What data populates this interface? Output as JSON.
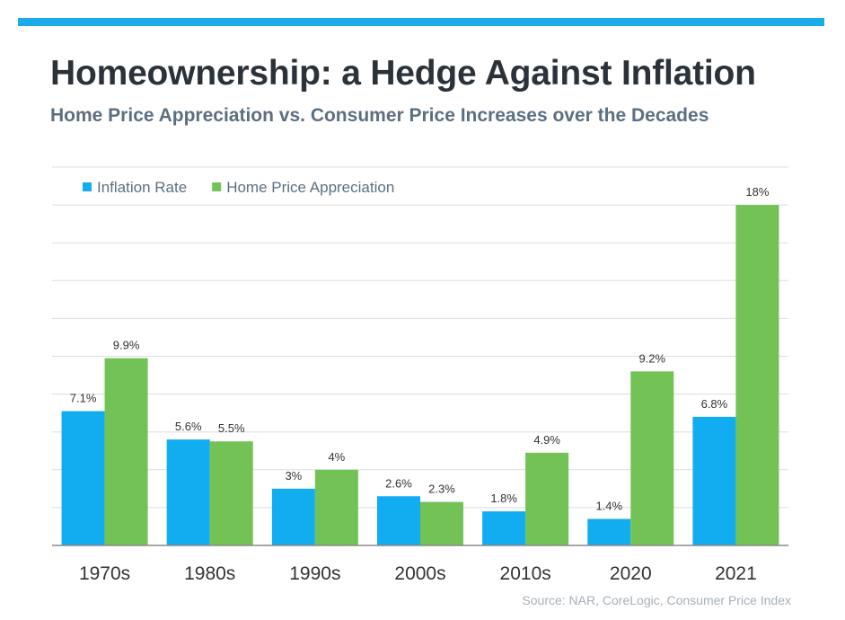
{
  "header": {
    "title": "Homeownership: a Hedge Against Inflation",
    "subtitle": "Home Price Appreciation vs. Consumer Price Increases over the Decades"
  },
  "footer": {
    "source": "Source: NAR, CoreLogic, Consumer Price Index"
  },
  "colors": {
    "accent_bar": "#1aabeb",
    "inflation": "#12acf0",
    "home_price": "#72c256",
    "gridline": "#dddddd",
    "axis": "#8a8a8a",
    "label_text": "#333333",
    "tick_text": "#333333"
  },
  "chart_data": {
    "type": "bar",
    "categories": [
      "1970s",
      "1980s",
      "1990s",
      "2000s",
      "2010s",
      "2020",
      "2021"
    ],
    "series": [
      {
        "name": "Inflation Rate",
        "values": [
          7.1,
          5.6,
          3,
          2.6,
          1.8,
          1.4,
          6.8
        ],
        "labels": [
          "7.1%",
          "5.6%",
          "3%",
          "2.6%",
          "1.8%",
          "1.4%",
          "6.8%"
        ]
      },
      {
        "name": "Home Price Appreciation",
        "values": [
          9.9,
          5.5,
          4,
          2.3,
          4.9,
          9.2,
          18
        ],
        "labels": [
          "9.9%",
          "5.5%",
          "4%",
          "2.3%",
          "4.9%",
          "9.2%",
          "18%"
        ]
      }
    ],
    "ylim": [
      0,
      20
    ],
    "grid": true,
    "legend_position": "top-left"
  }
}
